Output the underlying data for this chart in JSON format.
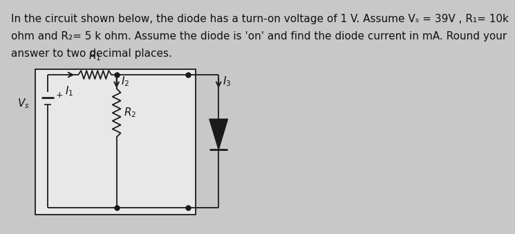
{
  "title_line1": "In the circuit shown below, the diode has a turn-on voltage of 1 V. Assume Vₛ = 39V , R₁= 10k",
  "title_line2": "ohm and R₂= 5 k ohm. Assume the diode is 'on' and find the diode current in mA. Round your",
  "title_line3": "answer to two decimal places.",
  "bg_color": "#c8c8c8",
  "circuit_bg": "#e8e8e8",
  "text_color": "#111111",
  "font_size": 11.0,
  "lw": 1.4,
  "circuit_lw": 1.3
}
